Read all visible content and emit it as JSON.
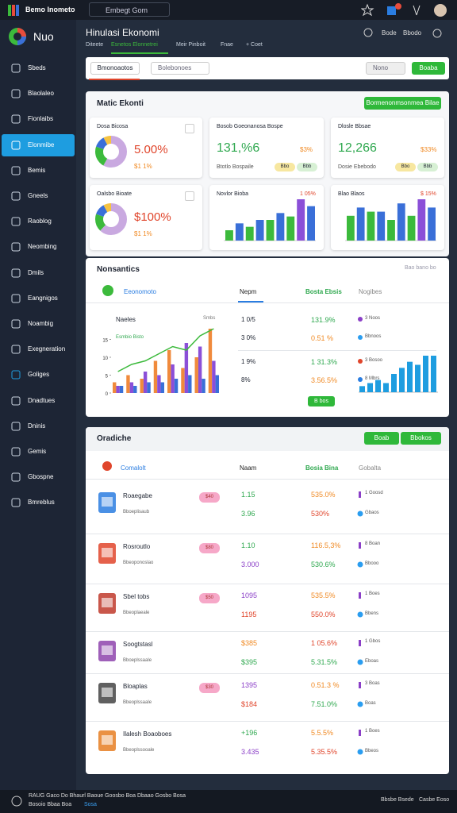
{
  "topbar": {
    "brand": "Bemo Inometo",
    "search": "Embegt Gom",
    "badge": "2"
  },
  "sidebar": {
    "logo": "Nuo",
    "active": 3,
    "items": [
      "Sbeds",
      "Blaolaleo",
      "Fionlaibs",
      "Elonmibe",
      "Bemis",
      "Gneels",
      "Raoblog",
      "Neombing",
      "Dmils",
      "Eangnigos",
      "Noambig",
      "Exegneration",
      "Goliges",
      "Dnadtues",
      "Dninis",
      "Gemis",
      "Gbospne",
      "Bmreblus"
    ]
  },
  "header": {
    "title": "Hinulasi Ekonomi",
    "tabs": [
      "Diteete",
      "Esnetos Elonnetrei",
      "Meir Pinboit",
      "Fnae",
      "+ Coet"
    ],
    "actions": [
      "Bode",
      "Bbodo"
    ]
  },
  "toolbar": {
    "tab": "Bmonoaotos",
    "select": "Bolebonoes",
    "select2": "Nono",
    "button": "Boaba"
  },
  "overview": {
    "title": "Matic Ekonti",
    "button": "Bormenonmsonmea Bilae",
    "kpis": [
      {
        "title": "Dosa Bicosa",
        "value": "5.00%",
        "sub": "$1 1%",
        "donut": [
          58,
          22,
          12,
          8
        ]
      },
      {
        "title": "Bosob Goeonanosa Bospe",
        "value": "131,%6",
        "delta": "$3%",
        "sub": "Btotlo Bospaile",
        "pills": [
          "Bbo",
          "Bbb"
        ]
      },
      {
        "title": "Dlosle Bbsae",
        "value": "12,266",
        "delta": "$33%",
        "sub": "Dosie Ebebodo",
        "pills": [
          "Bbo",
          "Bbb"
        ]
      },
      {
        "title": "Oalsbo Bioate",
        "value": "$100%",
        "sub": "$1 1%",
        "donut": [
          62,
          18,
          12,
          8
        ]
      },
      {
        "title": "Novlor Bioba",
        "delta": "1 05%",
        "bars": [
          3,
          5,
          4,
          6,
          6,
          8,
          7,
          12,
          10
        ]
      },
      {
        "title": "Blao Blaos",
        "delta": "$ 15%",
        "bars": [
          6,
          8,
          7,
          7,
          5,
          9,
          6,
          10,
          8
        ]
      }
    ]
  },
  "table": {
    "title": "Nonsantics",
    "note": "Bao bano bo",
    "headers": [
      "Eeonomoto",
      "Nepm",
      "Bosta Ebsis",
      "Nogibes"
    ],
    "chart": {
      "title": "Naeles",
      "legend": "Esmbio Bisto",
      "corner": "Smbs",
      "ylim": [
        0,
        20
      ],
      "yticks": [
        0,
        5,
        10,
        15
      ],
      "series": [
        {
          "color": "#f08a3c",
          "values": [
            3,
            5,
            4,
            9,
            12,
            7,
            10,
            18
          ]
        },
        {
          "color": "#8b4fd8",
          "values": [
            2,
            3,
            6,
            5,
            8,
            14,
            13,
            9
          ]
        },
        {
          "color": "#3a6fd8",
          "values": [
            2,
            2,
            3,
            3,
            4,
            5,
            4,
            5
          ]
        }
      ],
      "line": [
        6,
        8,
        9,
        11,
        13,
        12,
        16,
        18
      ]
    },
    "rows": [
      {
        "a": "1 0/5",
        "b": "131.9%",
        "c": "3 Noos"
      },
      {
        "a": "3 0%",
        "b": "0.51 %",
        "c": "Bbnoos"
      },
      {
        "a": "1 9%",
        "b": "1 31.3%",
        "c": "3 Bosoo"
      },
      {
        "a": "8%",
        "b": "3.56.5%",
        "c": "8 Mbrs"
      }
    ],
    "button": "B bos",
    "mini": [
      2,
      3,
      4,
      3,
      6,
      8,
      10,
      9,
      12,
      12
    ]
  },
  "list": {
    "title": "Oradiche",
    "buttons": [
      "Boab",
      "Bbokos"
    ],
    "headers": [
      "Comalolt",
      "Naam",
      "Bosia Bina",
      "Gobalta"
    ],
    "rows": [
      {
        "name": "Roaegabe",
        "sub": "Bboeplisaub",
        "badge": "$40",
        "v1": "1.15",
        "v2": "3.96",
        "p1": "535.0%",
        "p2": "530%",
        "t1": "1 Goosd",
        "t2": "Gbaos"
      },
      {
        "name": "Rosroutlo",
        "sub": "Bbeoponoslao",
        "badge": "$80",
        "v1": "1.10",
        "v2": "3.000",
        "p1": "116.5,3%",
        "p2": "530.6%",
        "t1": "8 Boan",
        "t2": "Bbooo"
      },
      {
        "name": "Sbel tobs",
        "sub": "Bbeoplaeale",
        "badge": "$50",
        "v1": "1095",
        "v2": "1195",
        "p1": "535.5%",
        "p2": "550.0%",
        "t1": "1 Boes",
        "t2": "Bbens"
      },
      {
        "name": "Soogtstasl",
        "sub": "Bboeplssaale",
        "v1": "$385",
        "v2": "$395",
        "p1": "1 05.6%",
        "p2": "5.31.5%",
        "t1": "1 Gbos",
        "t2": "Eboas"
      },
      {
        "name": "Bloaplas",
        "sub": "Bbeoplssaale",
        "badge": "$30",
        "v1": "1395",
        "v2": "$184",
        "p1": "0.51.3 %",
        "p2": "7.51.0%",
        "t1": "3 Boas",
        "t2": "Boas"
      },
      {
        "name": "Ilalesh Boaoboes",
        "sub": "Bbeoplssooale",
        "v1": "+196",
        "v2": "3.435",
        "p1": "5.5.5%",
        "p2": "5.35.5%",
        "t1": "1 Boes",
        "t2": "Bbeos"
      }
    ]
  },
  "footer": {
    "line1": "RAUG Gaco Do Bhaurl Baoue Goosbo Boa Dbaao Gosbo Bosa",
    "line2": "Bosoio Bbaa Boa",
    "link": "Sosa",
    "right": [
      "Bbsbe Bsede",
      "Casbe Eoso"
    ]
  }
}
